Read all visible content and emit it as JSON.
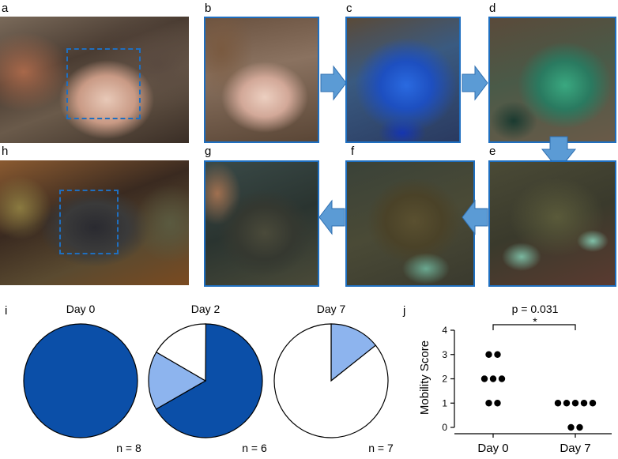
{
  "panels": {
    "a": "a",
    "b": "b",
    "c": "c",
    "d": "d",
    "e": "e",
    "f": "f",
    "g": "g",
    "h": "h",
    "i": "i",
    "j": "j"
  },
  "photo_scale_text": "",
  "pies": [
    {
      "title": "Day 0",
      "n": "n = 8",
      "slices": [
        {
          "fraction": 1.0,
          "color": "#0b4fa8"
        }
      ]
    },
    {
      "title": "Day 2",
      "n": "n = 6",
      "slices": [
        {
          "fraction": 0.667,
          "color": "#0b4fa8"
        },
        {
          "fraction": 0.167,
          "color": "#8db4ee"
        },
        {
          "fraction": 0.167,
          "color": "#ffffff"
        }
      ]
    },
    {
      "title": "Day 7",
      "n": "n = 7",
      "slices": [
        {
          "fraction": 0.143,
          "color": "#8db4ee"
        },
        {
          "fraction": 0.857,
          "color": "#ffffff"
        }
      ]
    }
  ],
  "chart_data": {
    "type": "scatter",
    "categories": [
      "Day 0",
      "Day 7"
    ],
    "ylabel": "Mobility Score",
    "ylim": [
      0,
      4
    ],
    "yticks": [
      "0",
      "1",
      "2",
      "3",
      "4"
    ],
    "series": [
      {
        "category": "Day 0",
        "values": [
          3,
          3,
          2,
          2,
          2,
          1,
          1
        ]
      },
      {
        "category": "Day 7",
        "values": [
          1,
          1,
          1,
          1,
          1,
          0,
          0
        ]
      }
    ],
    "annotation": {
      "p_value": "p = 0.031",
      "star": "*"
    }
  },
  "colors": {
    "frame": "#1f6fc0",
    "arrow": "#5b9bd5",
    "dark_blue": "#0b4fa8",
    "light_blue": "#8db4ee"
  }
}
